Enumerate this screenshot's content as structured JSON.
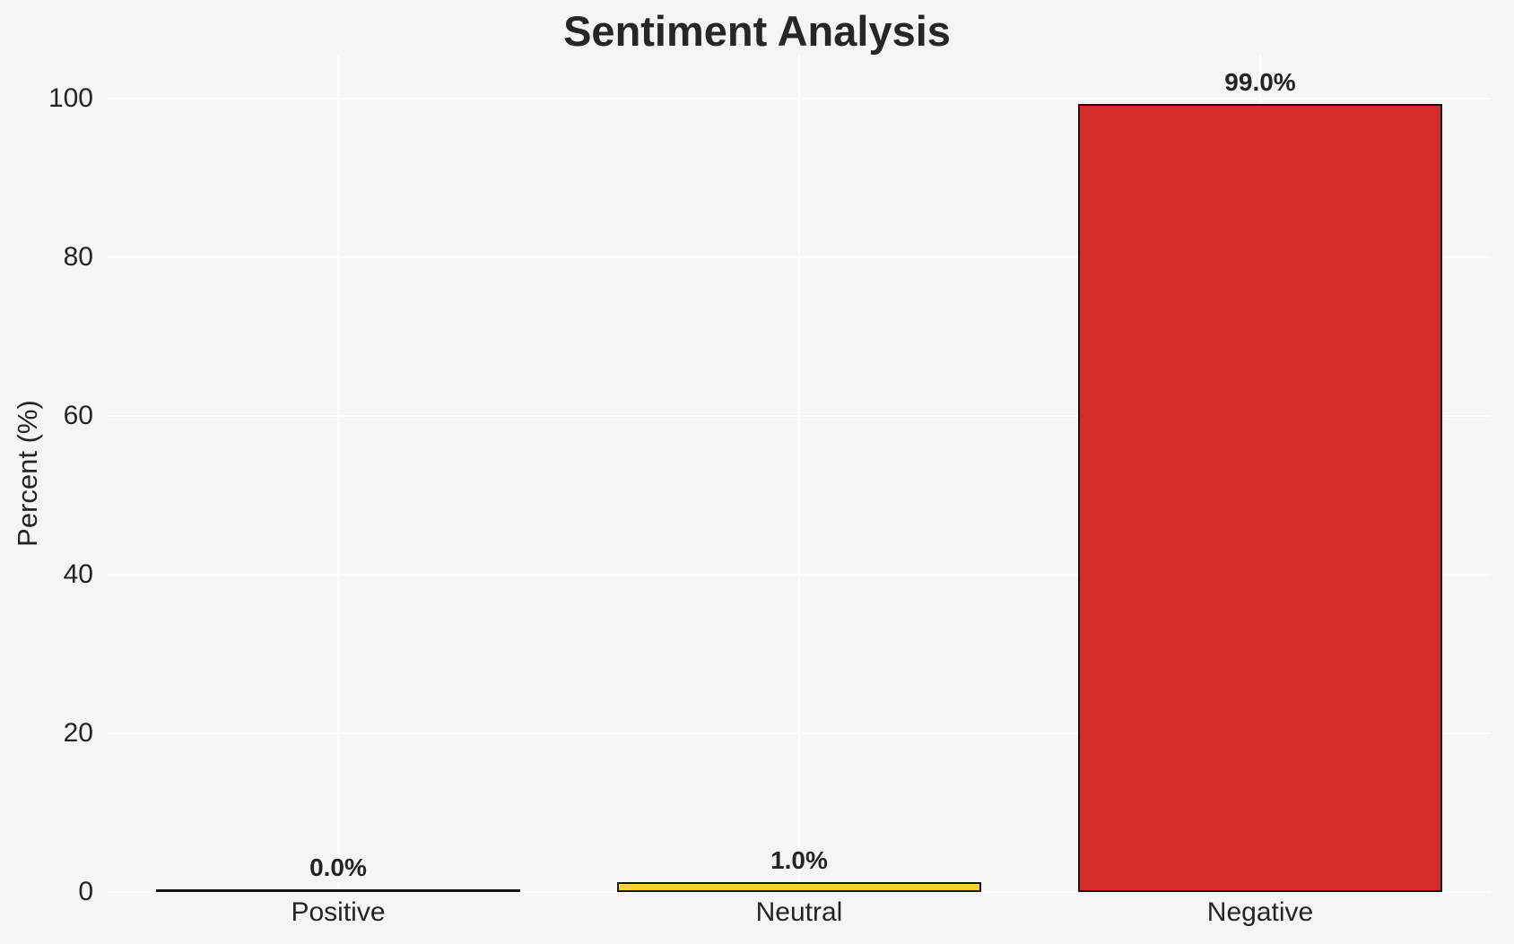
{
  "figure": {
    "background_color": "#f5f5f5",
    "text_color": "#242424",
    "grid_color": "#ffffff"
  },
  "chart_data": {
    "type": "bar",
    "title": "Sentiment Analysis",
    "xlabel": "",
    "ylabel": "Percent (%)",
    "categories": [
      "Positive",
      "Neutral",
      "Negative"
    ],
    "values": [
      0.0,
      1.0,
      99.0
    ],
    "value_labels": [
      "0.0%",
      "1.0%",
      "99.0%"
    ],
    "bar_colors": [
      null,
      "#F8D13A",
      "#D62B2B"
    ],
    "bar_edge_color": "#141414",
    "yticks": [
      0,
      20,
      40,
      60,
      80,
      100
    ],
    "ytick_labels": [
      "0",
      "20",
      "40",
      "60",
      "80",
      "100"
    ],
    "ylim": [
      0,
      105.4
    ],
    "grid": "horizontal white lines at yticks + vertical white lines at category centers",
    "legend": "none"
  }
}
